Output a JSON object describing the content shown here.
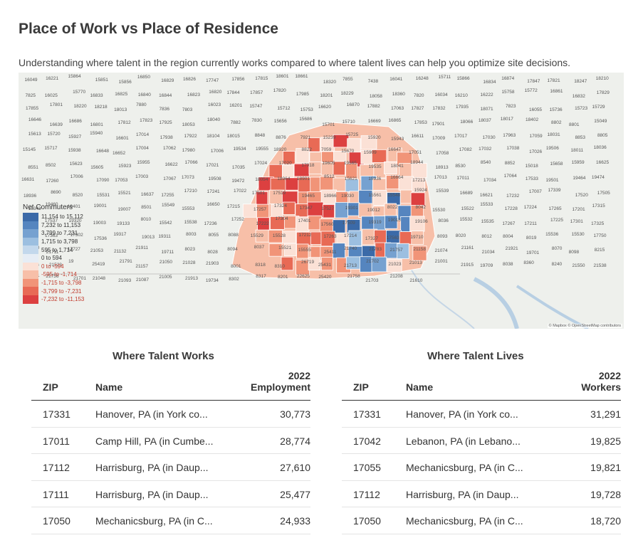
{
  "page": {
    "title": "Place of Work vs Place of Residence",
    "subtitle": "Understanding where talent in the region currently works compared to where talent lives can help you optimize site decisions."
  },
  "map": {
    "legend": {
      "title": "Net Commuters",
      "items": [
        {
          "label": "11,154 to 15,112",
          "color": "#3b6aa8",
          "negative": false
        },
        {
          "label": "7,232 to 11,153",
          "color": "#5585bf",
          "negative": false
        },
        {
          "label": "3,799 to 7,231",
          "color": "#76a1d0",
          "negative": false
        },
        {
          "label": "1,715 to 3,798",
          "color": "#9cbfe0",
          "negative": false
        },
        {
          "label": "595 to 1,714",
          "color": "#c3d8ec",
          "negative": false
        },
        {
          "label": "0 to 594",
          "color": "#e6edf5",
          "negative": false
        },
        {
          "label": "0 to -594",
          "color": "#fbe1d6",
          "negative": true
        },
        {
          "label": "-595 to -1,714",
          "color": "#f7bfa8",
          "negative": true
        },
        {
          "label": "-1,715 to -3,798",
          "color": "#f19478",
          "negative": true
        },
        {
          "label": "-3,799 to -7,231",
          "color": "#e86a55",
          "negative": true
        },
        {
          "label": "-7,232 to -11,153",
          "color": "#dc4040",
          "negative": true
        }
      ]
    },
    "attribution": "© Mapbox © OpenStreetMap contributors",
    "zip_labels": [
      "16049",
      "16221",
      "15864",
      "15851",
      "15856",
      "16850",
      "16829",
      "16826",
      "17747",
      "17856",
      "17815",
      "18601",
      "18661",
      "18320",
      "7855",
      "7438",
      "16041",
      "16248",
      "15711",
      "15866",
      "16834",
      "16874",
      "17847",
      "17821",
      "18247",
      "18210",
      "7825",
      "16025",
      "15770",
      "16833",
      "16825",
      "16840",
      "16844",
      "16823",
      "16820",
      "17844",
      "17857",
      "17820",
      "17985",
      "18201",
      "18229",
      "18058",
      "18360",
      "7820",
      "16034",
      "16210",
      "16222",
      "15758",
      "15772",
      "16861",
      "16832",
      "17829",
      "17855",
      "17801",
      "18220",
      "18218",
      "18013",
      "7880",
      "7836",
      "7803",
      "16023",
      "16201",
      "15747",
      "15712",
      "15753",
      "16620",
      "16870",
      "17882",
      "17063",
      "17827",
      "17832",
      "17935",
      "18071",
      "7823",
      "16055",
      "15736",
      "15723",
      "15729",
      "16646",
      "16639",
      "16686",
      "16801",
      "17812",
      "17823",
      "17925",
      "18053",
      "18040",
      "7882",
      "7830",
      "15656",
      "15686",
      "15701",
      "15710",
      "16669",
      "16865",
      "17853",
      "17901",
      "18066",
      "18037",
      "18017",
      "18402",
      "8802",
      "8801",
      "15049",
      "15613",
      "15720",
      "15927",
      "15940",
      "16601",
      "17014",
      "17938",
      "17922",
      "18104",
      "18015",
      "8848",
      "8876",
      "7921",
      "15239",
      "15725",
      "15920",
      "15943",
      "16611",
      "17009",
      "17017",
      "17030",
      "17963",
      "17059",
      "18031",
      "8853",
      "8805",
      "15145",
      "15717",
      "15938",
      "16648",
      "16652",
      "17004",
      "17062",
      "17980",
      "17006",
      "19534",
      "19555",
      "18920",
      "8822",
      "7059",
      "15670",
      "15909",
      "16647",
      "17051",
      "17058",
      "17082",
      "17032",
      "17038",
      "17026",
      "19506",
      "18011",
      "18036",
      "8551",
      "8502",
      "15623",
      "15605",
      "15923",
      "15955",
      "16622",
      "17066",
      "17021",
      "17035",
      "17024",
      "17020",
      "17018",
      "19605",
      "19565",
      "19535",
      "18041",
      "18944",
      "18913",
      "8530",
      "8540",
      "8852",
      "15018",
      "15658",
      "15959",
      "16625",
      "16631",
      "17260",
      "17006",
      "17090",
      "17053",
      "17003",
      "17067",
      "17073",
      "19508",
      "19472",
      "18054",
      "18964",
      "18901",
      "8512",
      "15621",
      "15936",
      "16664",
      "17213",
      "17013",
      "17011",
      "17034",
      "17064",
      "17533",
      "19501",
      "19464",
      "19474",
      "18936",
      "8690",
      "8520",
      "15531",
      "15521",
      "16637",
      "17255",
      "17210",
      "17241",
      "17022",
      "17501",
      "17519",
      "19465",
      "18966",
      "19030",
      "15561",
      "15548",
      "15924",
      "15539",
      "16689",
      "16621",
      "17232",
      "17007",
      "17339",
      "17520",
      "17505",
      "19343",
      "19460",
      "19401",
      "19001",
      "19007",
      "8501",
      "15549",
      "15553",
      "16650",
      "17215",
      "17257",
      "17324",
      "17347",
      "17527",
      "19301",
      "19012",
      "8022",
      "8042",
      "15530",
      "15522",
      "15533",
      "17228",
      "17224",
      "17265",
      "17201",
      "17315",
      "17368",
      "17537",
      "19320",
      "19003",
      "19133",
      "8010",
      "15542",
      "15538",
      "17236",
      "17252",
      "17222",
      "17304",
      "17401",
      "17560",
      "17509",
      "19319",
      "19018",
      "19106",
      "8036",
      "15532",
      "15535",
      "17267",
      "17211",
      "17225",
      "17301",
      "17325",
      "17331",
      "17363",
      "17302",
      "17536",
      "19317",
      "19013",
      "19311",
      "8003",
      "8055",
      "8088",
      "15529",
      "15528",
      "17212",
      "17263",
      "17214",
      "17327",
      "17563",
      "19710",
      "8093",
      "8020",
      "8012",
      "8004",
      "8019",
      "15536",
      "15530",
      "17750",
      "21750",
      "21711",
      "17727",
      "21053",
      "21132",
      "21911",
      "19711",
      "8023",
      "8028",
      "8094",
      "8037",
      "15521",
      "15555",
      "25411",
      "21740",
      "21783",
      "21757",
      "21158",
      "21074",
      "21161",
      "21034",
      "21921",
      "19701",
      "8070",
      "8098",
      "8215",
      "21556",
      "21523",
      "19",
      "25419",
      "21791",
      "21157",
      "21050",
      "21028",
      "21903",
      "8001",
      "8318",
      "8310",
      "26719",
      "25431",
      "21713",
      "21702",
      "21023",
      "21013",
      "21001",
      "21915",
      "19709",
      "8038",
      "8360",
      "8240",
      "21550",
      "21538",
      "25401",
      "21756",
      "21701",
      "21048",
      "21093",
      "21087",
      "21005",
      "21913",
      "19734",
      "8302",
      "8317",
      "8201",
      "22625",
      "25420",
      "21758",
      "21703",
      "21208",
      "21610"
    ]
  },
  "work": {
    "title": "Where Talent Works",
    "col_zip": "ZIP",
    "col_name": "Name",
    "col_value_line1": "2022",
    "col_value_line2": "Employment",
    "rows": [
      {
        "zip": "17331",
        "name": "Hanover, PA (in York co...",
        "value": "30,773"
      },
      {
        "zip": "17011",
        "name": "Camp Hill, PA (in Cumbe...",
        "value": "28,774"
      },
      {
        "zip": "17112",
        "name": "Harrisburg, PA (in Daup...",
        "value": "27,610"
      },
      {
        "zip": "17111",
        "name": "Harrisburg, PA (in Daup...",
        "value": "25,477"
      },
      {
        "zip": "17050",
        "name": "Mechanicsburg, PA (in C...",
        "value": "24,933"
      }
    ]
  },
  "lives": {
    "title": "Where Talent Lives",
    "col_zip": "ZIP",
    "col_name": "Name",
    "col_value_line1": "2022",
    "col_value_line2": "Workers",
    "rows": [
      {
        "zip": "17331",
        "name": "Hanover, PA (in York co...",
        "value": "31,291"
      },
      {
        "zip": "17042",
        "name": "Lebanon, PA (in Lebano...",
        "value": "19,825"
      },
      {
        "zip": "17055",
        "name": "Mechanicsburg, PA (in C...",
        "value": "19,821"
      },
      {
        "zip": "17112",
        "name": "Harrisburg, PA (in Daup...",
        "value": "19,728"
      },
      {
        "zip": "17050",
        "name": "Mechanicsburg, PA (in C...",
        "value": "18,720"
      }
    ]
  }
}
